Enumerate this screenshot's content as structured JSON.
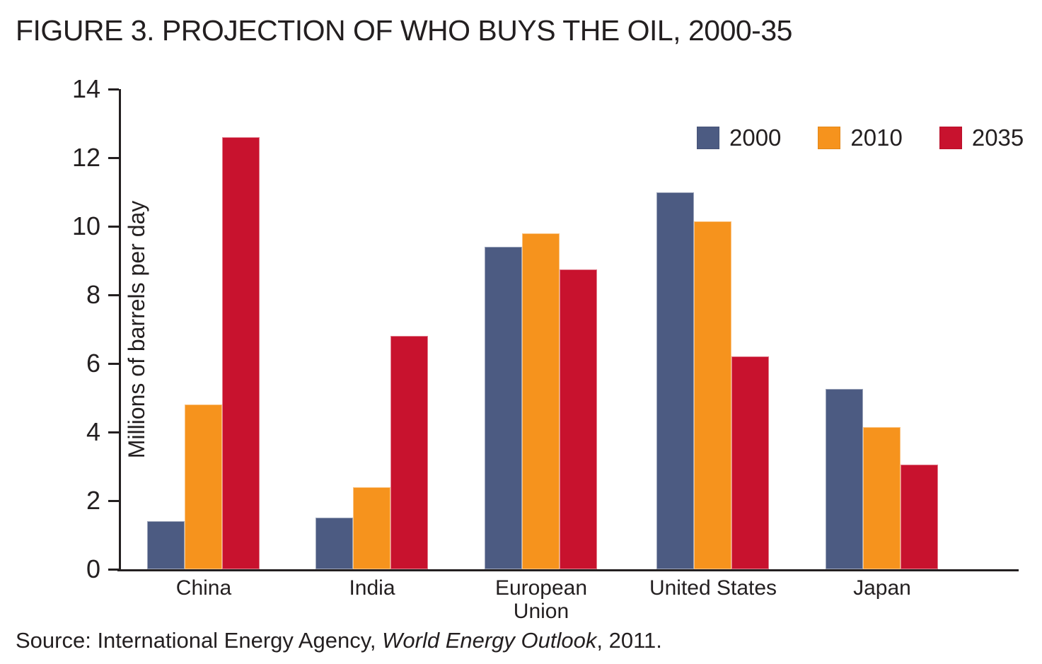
{
  "figure_title": "FIGURE 3. PROJECTION OF WHO BUYS THE OIL, 2000-35",
  "source": {
    "prefix": "Source: International Energy Agency, ",
    "italic": "World Energy Outlook",
    "suffix": ", 2011."
  },
  "chart_data": {
    "type": "bar",
    "title": "FIGURE 3. PROJECTION OF WHO BUYS THE OIL, 2000-35",
    "xlabel": "",
    "ylabel": "Millions of barrels per day",
    "ylim": [
      0,
      14
    ],
    "yticks": [
      0,
      2,
      4,
      6,
      8,
      10,
      12,
      14
    ],
    "grid": false,
    "legend_position": "top-right",
    "categories": [
      "China",
      "India",
      "European Union",
      "United States",
      "Japan"
    ],
    "series": [
      {
        "name": "2000",
        "color": "#4C5B82",
        "values": [
          1.4,
          1.5,
          9.4,
          11.0,
          5.25
        ]
      },
      {
        "name": "2010",
        "color": "#F6931D",
        "values": [
          4.8,
          2.4,
          9.8,
          10.15,
          4.15
        ]
      },
      {
        "name": "2035",
        "color": "#C8122E",
        "values": [
          12.6,
          6.8,
          8.75,
          6.2,
          3.05
        ]
      }
    ],
    "axis_color": "#231F20",
    "text_color": "#231F20"
  }
}
